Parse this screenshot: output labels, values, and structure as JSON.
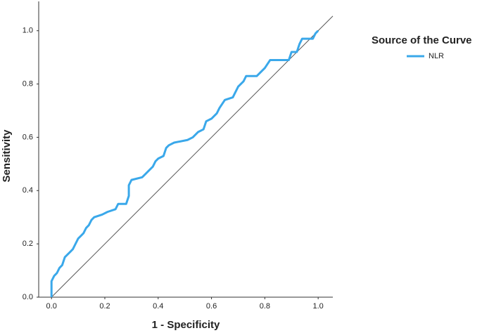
{
  "chart_data": {
    "type": "line",
    "xlabel": "1 - Specificity",
    "ylabel": "Sensitivity",
    "legend_title": "Source of the Curve",
    "legend": "right",
    "xlim": [
      -0.048,
      1.055
    ],
    "ylim": [
      0,
      1.11
    ],
    "xticks": [
      {
        "value": 0,
        "label": "0.0"
      },
      {
        "value": 0.2,
        "label": "0.2"
      },
      {
        "value": 0.4,
        "label": "0.4"
      },
      {
        "value": 0.6,
        "label": "0.6"
      },
      {
        "value": 0.8,
        "label": "0.8"
      },
      {
        "value": 1,
        "label": "1.0"
      }
    ],
    "yticks": [
      {
        "value": 0,
        "label": "0.0"
      },
      {
        "value": 0.2,
        "label": "0.2"
      },
      {
        "value": 0.4,
        "label": "0.4"
      },
      {
        "value": 0.6,
        "label": "0.6"
      },
      {
        "value": 0.8,
        "label": "0.8"
      },
      {
        "value": 1,
        "label": "1.0"
      }
    ],
    "x": [
      0,
      0,
      0.01,
      0.02,
      0.03,
      0.04,
      0.05,
      0.06,
      0.07,
      0.08,
      0.09,
      0.1,
      0.11,
      0.12,
      0.13,
      0.14,
      0.15,
      0.16,
      0.19,
      0.21,
      0.24,
      0.25,
      0.28,
      0.29,
      0.29,
      0.3,
      0.34,
      0.35,
      0.37,
      0.38,
      0.39,
      0.4,
      0.42,
      0.43,
      0.44,
      0.46,
      0.51,
      0.53,
      0.55,
      0.57,
      0.58,
      0.6,
      0.62,
      0.63,
      0.65,
      0.68,
      0.69,
      0.7,
      0.72,
      0.73,
      0.77,
      0.79,
      0.8,
      0.82,
      0.89,
      0.9,
      0.92,
      0.93,
      0.94,
      0.98,
      0.99,
      1
    ],
    "series": [
      {
        "name": "NLR",
        "color": "#3aa8ea",
        "values": [
          0,
          0.06,
          0.08,
          0.09,
          0.11,
          0.12,
          0.15,
          0.16,
          0.17,
          0.18,
          0.2,
          0.22,
          0.23,
          0.24,
          0.26,
          0.27,
          0.29,
          0.3,
          0.31,
          0.32,
          0.33,
          0.35,
          0.35,
          0.38,
          0.42,
          0.44,
          0.45,
          0.46,
          0.48,
          0.49,
          0.51,
          0.52,
          0.53,
          0.56,
          0.57,
          0.58,
          0.59,
          0.6,
          0.62,
          0.63,
          0.66,
          0.67,
          0.69,
          0.71,
          0.74,
          0.75,
          0.77,
          0.79,
          0.81,
          0.83,
          0.83,
          0.85,
          0.86,
          0.89,
          0.89,
          0.92,
          0.92,
          0.95,
          0.97,
          0.97,
          0.99,
          1
        ]
      }
    ]
  }
}
